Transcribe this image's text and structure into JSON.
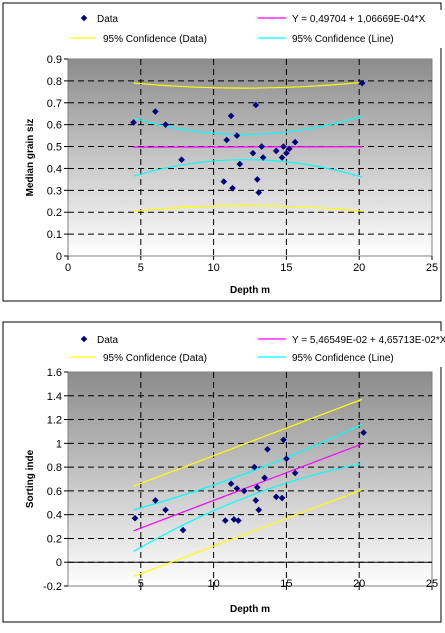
{
  "chart_data": [
    {
      "type": "scatter",
      "title": "",
      "xlabel": "Depth m",
      "ylabel": "Median grain siz",
      "xlim": [
        0,
        25
      ],
      "ylim": [
        0,
        0.9
      ],
      "x_ticks": [
        "0",
        "5",
        "10",
        "15",
        "20",
        "25"
      ],
      "y_ticks": [
        "0",
        "0.1",
        "0.2",
        "0.3",
        "0.4",
        "0.5",
        "0.6",
        "0.7",
        "0.8",
        "0.9"
      ],
      "grid": true,
      "legend_position": "top",
      "legend": {
        "data": "Data",
        "fit": "Y = 0,49704 + 1,06669E-04*X",
        "conf_data": "95% Confidence (Data)",
        "conf_line": "95% Confidence (Line)"
      },
      "colors": {
        "points": "#000080",
        "fit": "#ff00ff",
        "conf_data": "#ffff00",
        "conf_line": "#00ffff"
      },
      "series": [
        {
          "name": "Data",
          "x": [
            4.5,
            6.0,
            6.7,
            7.8,
            10.7,
            10.9,
            11.2,
            11.3,
            11.6,
            11.8,
            12.7,
            12.9,
            13.0,
            13.1,
            13.3,
            13.4,
            14.3,
            14.7,
            14.8,
            15.0,
            15.2,
            15.6,
            20.2
          ],
          "y": [
            0.61,
            0.66,
            0.6,
            0.44,
            0.34,
            0.53,
            0.64,
            0.31,
            0.55,
            0.42,
            0.47,
            0.69,
            0.35,
            0.29,
            0.5,
            0.45,
            0.48,
            0.45,
            0.5,
            0.47,
            0.49,
            0.52,
            0.79
          ]
        },
        {
          "name": "Y = 0,49704 + 1,06669E-04*X",
          "x": [
            4.5,
            20.2
          ],
          "y": [
            0.4975,
            0.4992
          ]
        },
        {
          "name": "95% Confidence (Data)",
          "x": [
            4.5,
            12.3,
            20.2
          ],
          "y": [
            0.79,
            0.767,
            0.793
          ]
        },
        {
          "name": "95% Confidence (Data)",
          "x": [
            4.5,
            12.3,
            20.2
          ],
          "y": [
            0.205,
            0.23,
            0.205
          ]
        },
        {
          "name": "95% Confidence (Line)",
          "x": [
            4.5,
            12.3,
            20.2
          ],
          "y": [
            0.63,
            0.555,
            0.64
          ]
        },
        {
          "name": "95% Confidence (Line)",
          "x": [
            4.5,
            12.3,
            20.2
          ],
          "y": [
            0.365,
            0.44,
            0.36
          ]
        }
      ]
    },
    {
      "type": "scatter",
      "title": "",
      "xlabel": "Depth m",
      "ylabel": "Sorting inde",
      "xlim": [
        0,
        25
      ],
      "ylim": [
        -0.2,
        1.6
      ],
      "x_ticks": [
        "5",
        "10",
        "15",
        "20",
        "25"
      ],
      "y_ticks": [
        "-0.2",
        "0",
        "0.2",
        "0.4",
        "0.6",
        "0.8",
        "1",
        "1.2",
        "1.4",
        "1.6"
      ],
      "grid": true,
      "legend_position": "top",
      "legend": {
        "data": "Data",
        "fit": "Y = 5,46549E-02 + 4,65713E-02*X",
        "conf_data": "95% Confidence (Data)",
        "conf_line": "95% Confidence (Line)"
      },
      "colors": {
        "points": "#000080",
        "fit": "#ff00ff",
        "conf_data": "#ffff00",
        "conf_line": "#00ffff"
      },
      "series": [
        {
          "name": "Data",
          "x": [
            4.6,
            6.0,
            6.7,
            7.9,
            10.8,
            11.2,
            11.4,
            11.6,
            11.7,
            12.1,
            12.8,
            12.9,
            13.0,
            13.1,
            13.5,
            13.7,
            14.3,
            14.7,
            14.8,
            15.0,
            15.6,
            20.3
          ],
          "y": [
            0.37,
            0.52,
            0.44,
            0.27,
            0.35,
            0.66,
            0.36,
            0.62,
            0.35,
            0.6,
            0.8,
            0.52,
            0.63,
            0.44,
            0.71,
            0.95,
            0.55,
            0.54,
            1.03,
            0.87,
            0.75,
            1.09
          ]
        },
        {
          "name": "Y = 5,46549E-02 + 4,65713E-02*X",
          "x": [
            4.5,
            20.2
          ],
          "y": [
            0.264,
            0.995
          ]
        },
        {
          "name": "95% Confidence (Data)",
          "x": [
            4.5,
            20.2
          ],
          "y": [
            0.64,
            1.37
          ]
        },
        {
          "name": "95% Confidence (Data)",
          "x": [
            4.5,
            20.2
          ],
          "y": [
            -0.12,
            0.61
          ]
        },
        {
          "name": "95% Confidence (Line)",
          "x": [
            4.5,
            12.3,
            20.2
          ],
          "y": [
            0.44,
            0.75,
            1.16
          ]
        },
        {
          "name": "95% Confidence (Line)",
          "x": [
            4.5,
            12.3,
            20.2
          ],
          "y": [
            0.09,
            0.55,
            0.83
          ]
        }
      ]
    }
  ]
}
